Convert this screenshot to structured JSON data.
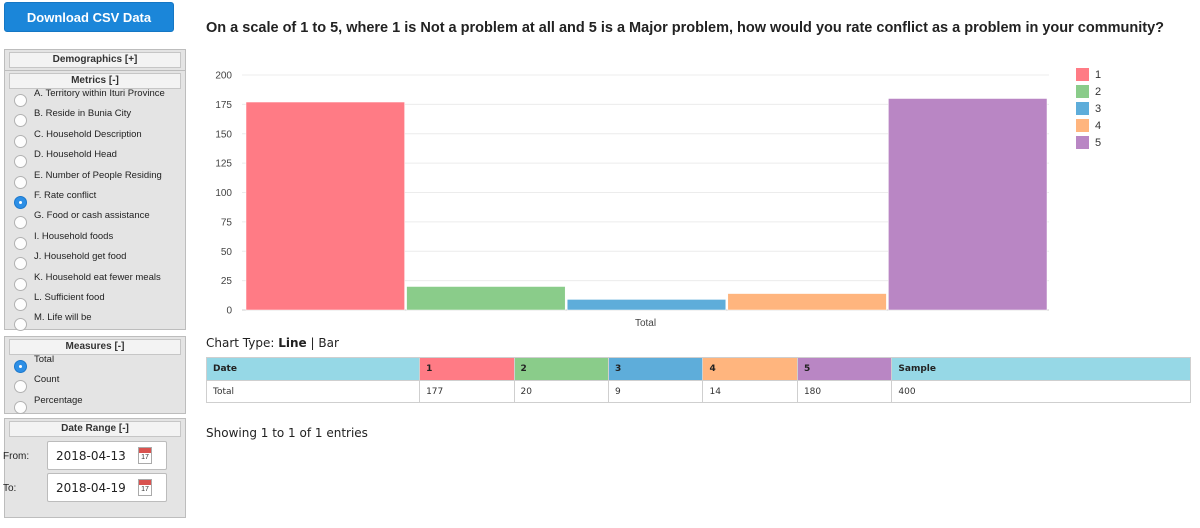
{
  "sidebar": {
    "download_label": "Download CSV Data",
    "demographics": {
      "title": "Demographics [+]"
    },
    "metrics": {
      "title": "Metrics [-]",
      "selected": 5,
      "items": [
        "A. Territory within Ituri Province",
        "B. Reside in Bunia City",
        "C. Household Description",
        "D. Household Head",
        "E. Number of People Residing",
        "F. Rate conflict",
        "G. Food or cash assistance",
        "I. Household foods",
        "J. Household get food",
        "K. Household eat fewer meals",
        "L. Sufficient food",
        "M. Life will be"
      ]
    },
    "measures": {
      "title": "Measures [-]",
      "selected": 0,
      "items": [
        "Total",
        "Count",
        "Percentage"
      ]
    },
    "date_range": {
      "title": "Date Range [-]",
      "from_label": "From:",
      "from_value": "2018-04-13",
      "to_label": "To:",
      "to_value": "2018-04-19",
      "calendar_day": "17"
    }
  },
  "main": {
    "question": "On a scale of 1 to 5, where 1 is Not a problem at all and 5 is a Major problem, how would you rate conflict as a problem in your community?",
    "chart_type": {
      "prefix": "Chart Type:",
      "line": "Line",
      "separator": "|",
      "bar": "Bar"
    },
    "table": {
      "headers": [
        "Date",
        "1",
        "2",
        "3",
        "4",
        "5",
        "Sample"
      ],
      "header_colors": [
        "#96d8e6",
        "#ff7b85",
        "#8acc8a",
        "#5eadda",
        "#ffb57e",
        "#b986c4",
        "#96d8e6"
      ],
      "rows": [
        [
          "Total",
          "177",
          "20",
          "9",
          "14",
          "180",
          "400"
        ]
      ]
    },
    "entries_text": "Showing 1 to 1 of 1 entries"
  },
  "chart_data": {
    "type": "bar",
    "categories": [
      "Total"
    ],
    "series": [
      {
        "name": "1",
        "values": [
          177
        ],
        "color": "#ff7b85"
      },
      {
        "name": "2",
        "values": [
          20
        ],
        "color": "#8acc8a"
      },
      {
        "name": "3",
        "values": [
          9
        ],
        "color": "#5eadda"
      },
      {
        "name": "4",
        "values": [
          14
        ],
        "color": "#ffb57e"
      },
      {
        "name": "5",
        "values": [
          180
        ],
        "color": "#b986c4"
      }
    ],
    "yticks": [
      0,
      25,
      50,
      75,
      100,
      125,
      150,
      175,
      200
    ],
    "ylim": [
      0,
      200
    ],
    "xlabel": "",
    "ylabel": "",
    "grid": true,
    "legend_position": "right"
  }
}
